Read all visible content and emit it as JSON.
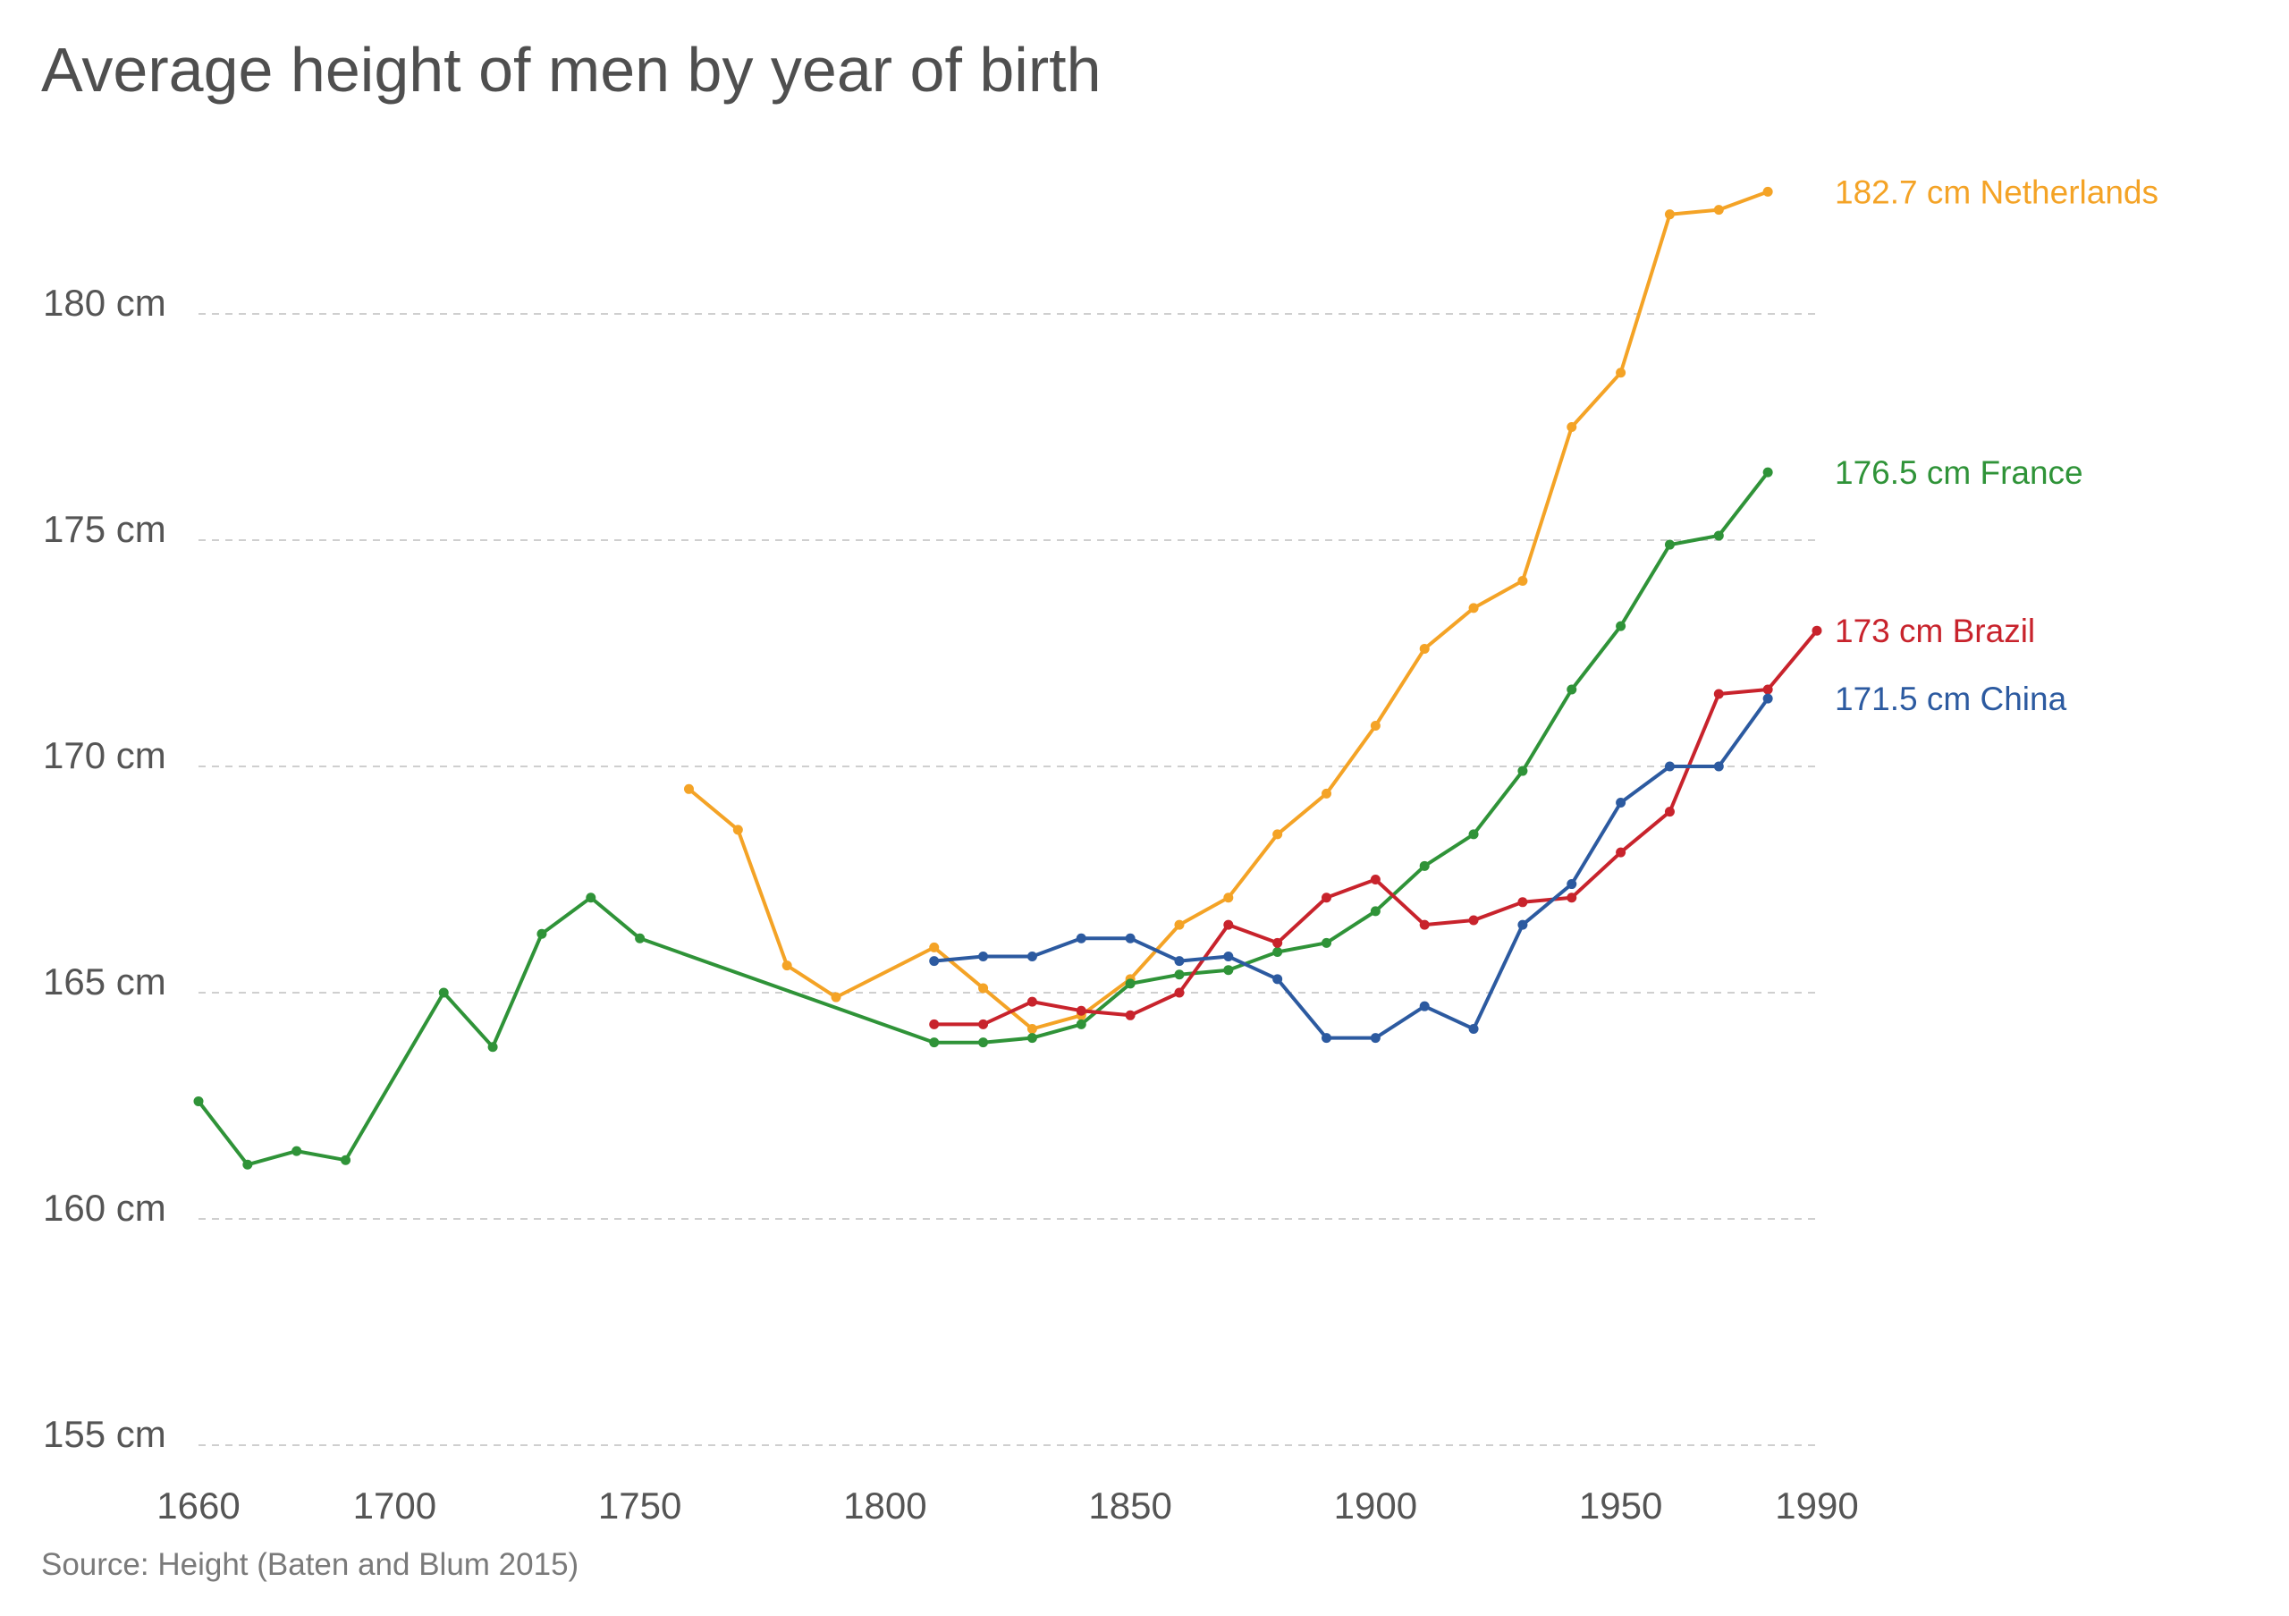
{
  "chart_data": {
    "type": "line",
    "title": "Average height of men by year of birth",
    "source": "Source: Height (Baten and Blum 2015)",
    "xlabel": "",
    "ylabel": "",
    "xlim": [
      1660,
      1990
    ],
    "ylim": [
      155,
      185
    ],
    "x_ticks": [
      {
        "value": 1660,
        "label": "1660"
      },
      {
        "value": 1700,
        "label": "1700"
      },
      {
        "value": 1750,
        "label": "1750"
      },
      {
        "value": 1800,
        "label": "1800"
      },
      {
        "value": 1850,
        "label": "1850"
      },
      {
        "value": 1900,
        "label": "1900"
      },
      {
        "value": 1950,
        "label": "1950"
      },
      {
        "value": 1990,
        "label": "1990"
      }
    ],
    "y_ticks": [
      {
        "value": 155,
        "label": "155 cm"
      },
      {
        "value": 160,
        "label": "160 cm"
      },
      {
        "value": 165,
        "label": "165 cm"
      },
      {
        "value": 170,
        "label": "170 cm"
      },
      {
        "value": 175,
        "label": "175 cm"
      },
      {
        "value": 180,
        "label": "180 cm"
      }
    ],
    "grid": true,
    "series": [
      {
        "name": "Netherlands",
        "end_label": "182.7 cm Netherlands",
        "color": "#f4a326",
        "points": [
          [
            1760,
            169.5
          ],
          [
            1770,
            168.6
          ],
          [
            1780,
            165.6
          ],
          [
            1790,
            164.9
          ],
          [
            1810,
            166.0
          ],
          [
            1820,
            165.1
          ],
          [
            1830,
            164.2
          ],
          [
            1840,
            164.5
          ],
          [
            1850,
            165.3
          ],
          [
            1860,
            166.5
          ],
          [
            1870,
            167.1
          ],
          [
            1880,
            168.5
          ],
          [
            1890,
            169.4
          ],
          [
            1900,
            170.9
          ],
          [
            1910,
            172.6
          ],
          [
            1920,
            173.5
          ],
          [
            1930,
            174.1
          ],
          [
            1940,
            177.5
          ],
          [
            1950,
            178.7
          ],
          [
            1960,
            182.2
          ],
          [
            1970,
            182.3
          ],
          [
            1980,
            182.7
          ]
        ]
      },
      {
        "name": "France",
        "end_label": "176.5 cm France",
        "color": "#2f9338",
        "points": [
          [
            1660,
            162.6
          ],
          [
            1670,
            161.2
          ],
          [
            1680,
            161.5
          ],
          [
            1690,
            161.3
          ],
          [
            1710,
            165.0
          ],
          [
            1720,
            163.8
          ],
          [
            1730,
            166.3
          ],
          [
            1740,
            167.1
          ],
          [
            1750,
            166.2
          ],
          [
            1810,
            163.9
          ],
          [
            1820,
            163.9
          ],
          [
            1830,
            164.0
          ],
          [
            1840,
            164.3
          ],
          [
            1850,
            165.2
          ],
          [
            1860,
            165.4
          ],
          [
            1870,
            165.5
          ],
          [
            1880,
            165.9
          ],
          [
            1890,
            166.1
          ],
          [
            1900,
            166.8
          ],
          [
            1910,
            167.8
          ],
          [
            1920,
            168.5
          ],
          [
            1930,
            169.9
          ],
          [
            1940,
            171.7
          ],
          [
            1950,
            173.1
          ],
          [
            1960,
            174.9
          ],
          [
            1970,
            175.1
          ],
          [
            1980,
            176.5
          ]
        ]
      },
      {
        "name": "Brazil",
        "end_label": "173 cm Brazil",
        "color": "#c8232c",
        "points": [
          [
            1810,
            164.3
          ],
          [
            1820,
            164.3
          ],
          [
            1830,
            164.8
          ],
          [
            1840,
            164.6
          ],
          [
            1850,
            164.5
          ],
          [
            1860,
            165.0
          ],
          [
            1870,
            166.5
          ],
          [
            1880,
            166.1
          ],
          [
            1890,
            167.1
          ],
          [
            1900,
            167.5
          ],
          [
            1910,
            166.5
          ],
          [
            1920,
            166.6
          ],
          [
            1930,
            167.0
          ],
          [
            1940,
            167.1
          ],
          [
            1950,
            168.1
          ],
          [
            1960,
            169.0
          ],
          [
            1970,
            171.6
          ],
          [
            1980,
            171.7
          ],
          [
            1990,
            173.0
          ]
        ]
      },
      {
        "name": "China",
        "end_label": "171.5 cm China",
        "color": "#2c5aa0",
        "points": [
          [
            1810,
            165.7
          ],
          [
            1820,
            165.8
          ],
          [
            1830,
            165.8
          ],
          [
            1840,
            166.2
          ],
          [
            1850,
            166.2
          ],
          [
            1860,
            165.7
          ],
          [
            1870,
            165.8
          ],
          [
            1880,
            165.3
          ],
          [
            1890,
            164.0
          ],
          [
            1900,
            164.0
          ],
          [
            1910,
            164.7
          ],
          [
            1920,
            164.2
          ],
          [
            1930,
            166.5
          ],
          [
            1940,
            167.4
          ],
          [
            1950,
            169.2
          ],
          [
            1960,
            170.0
          ],
          [
            1970,
            170.0
          ],
          [
            1980,
            171.5
          ]
        ]
      }
    ]
  }
}
